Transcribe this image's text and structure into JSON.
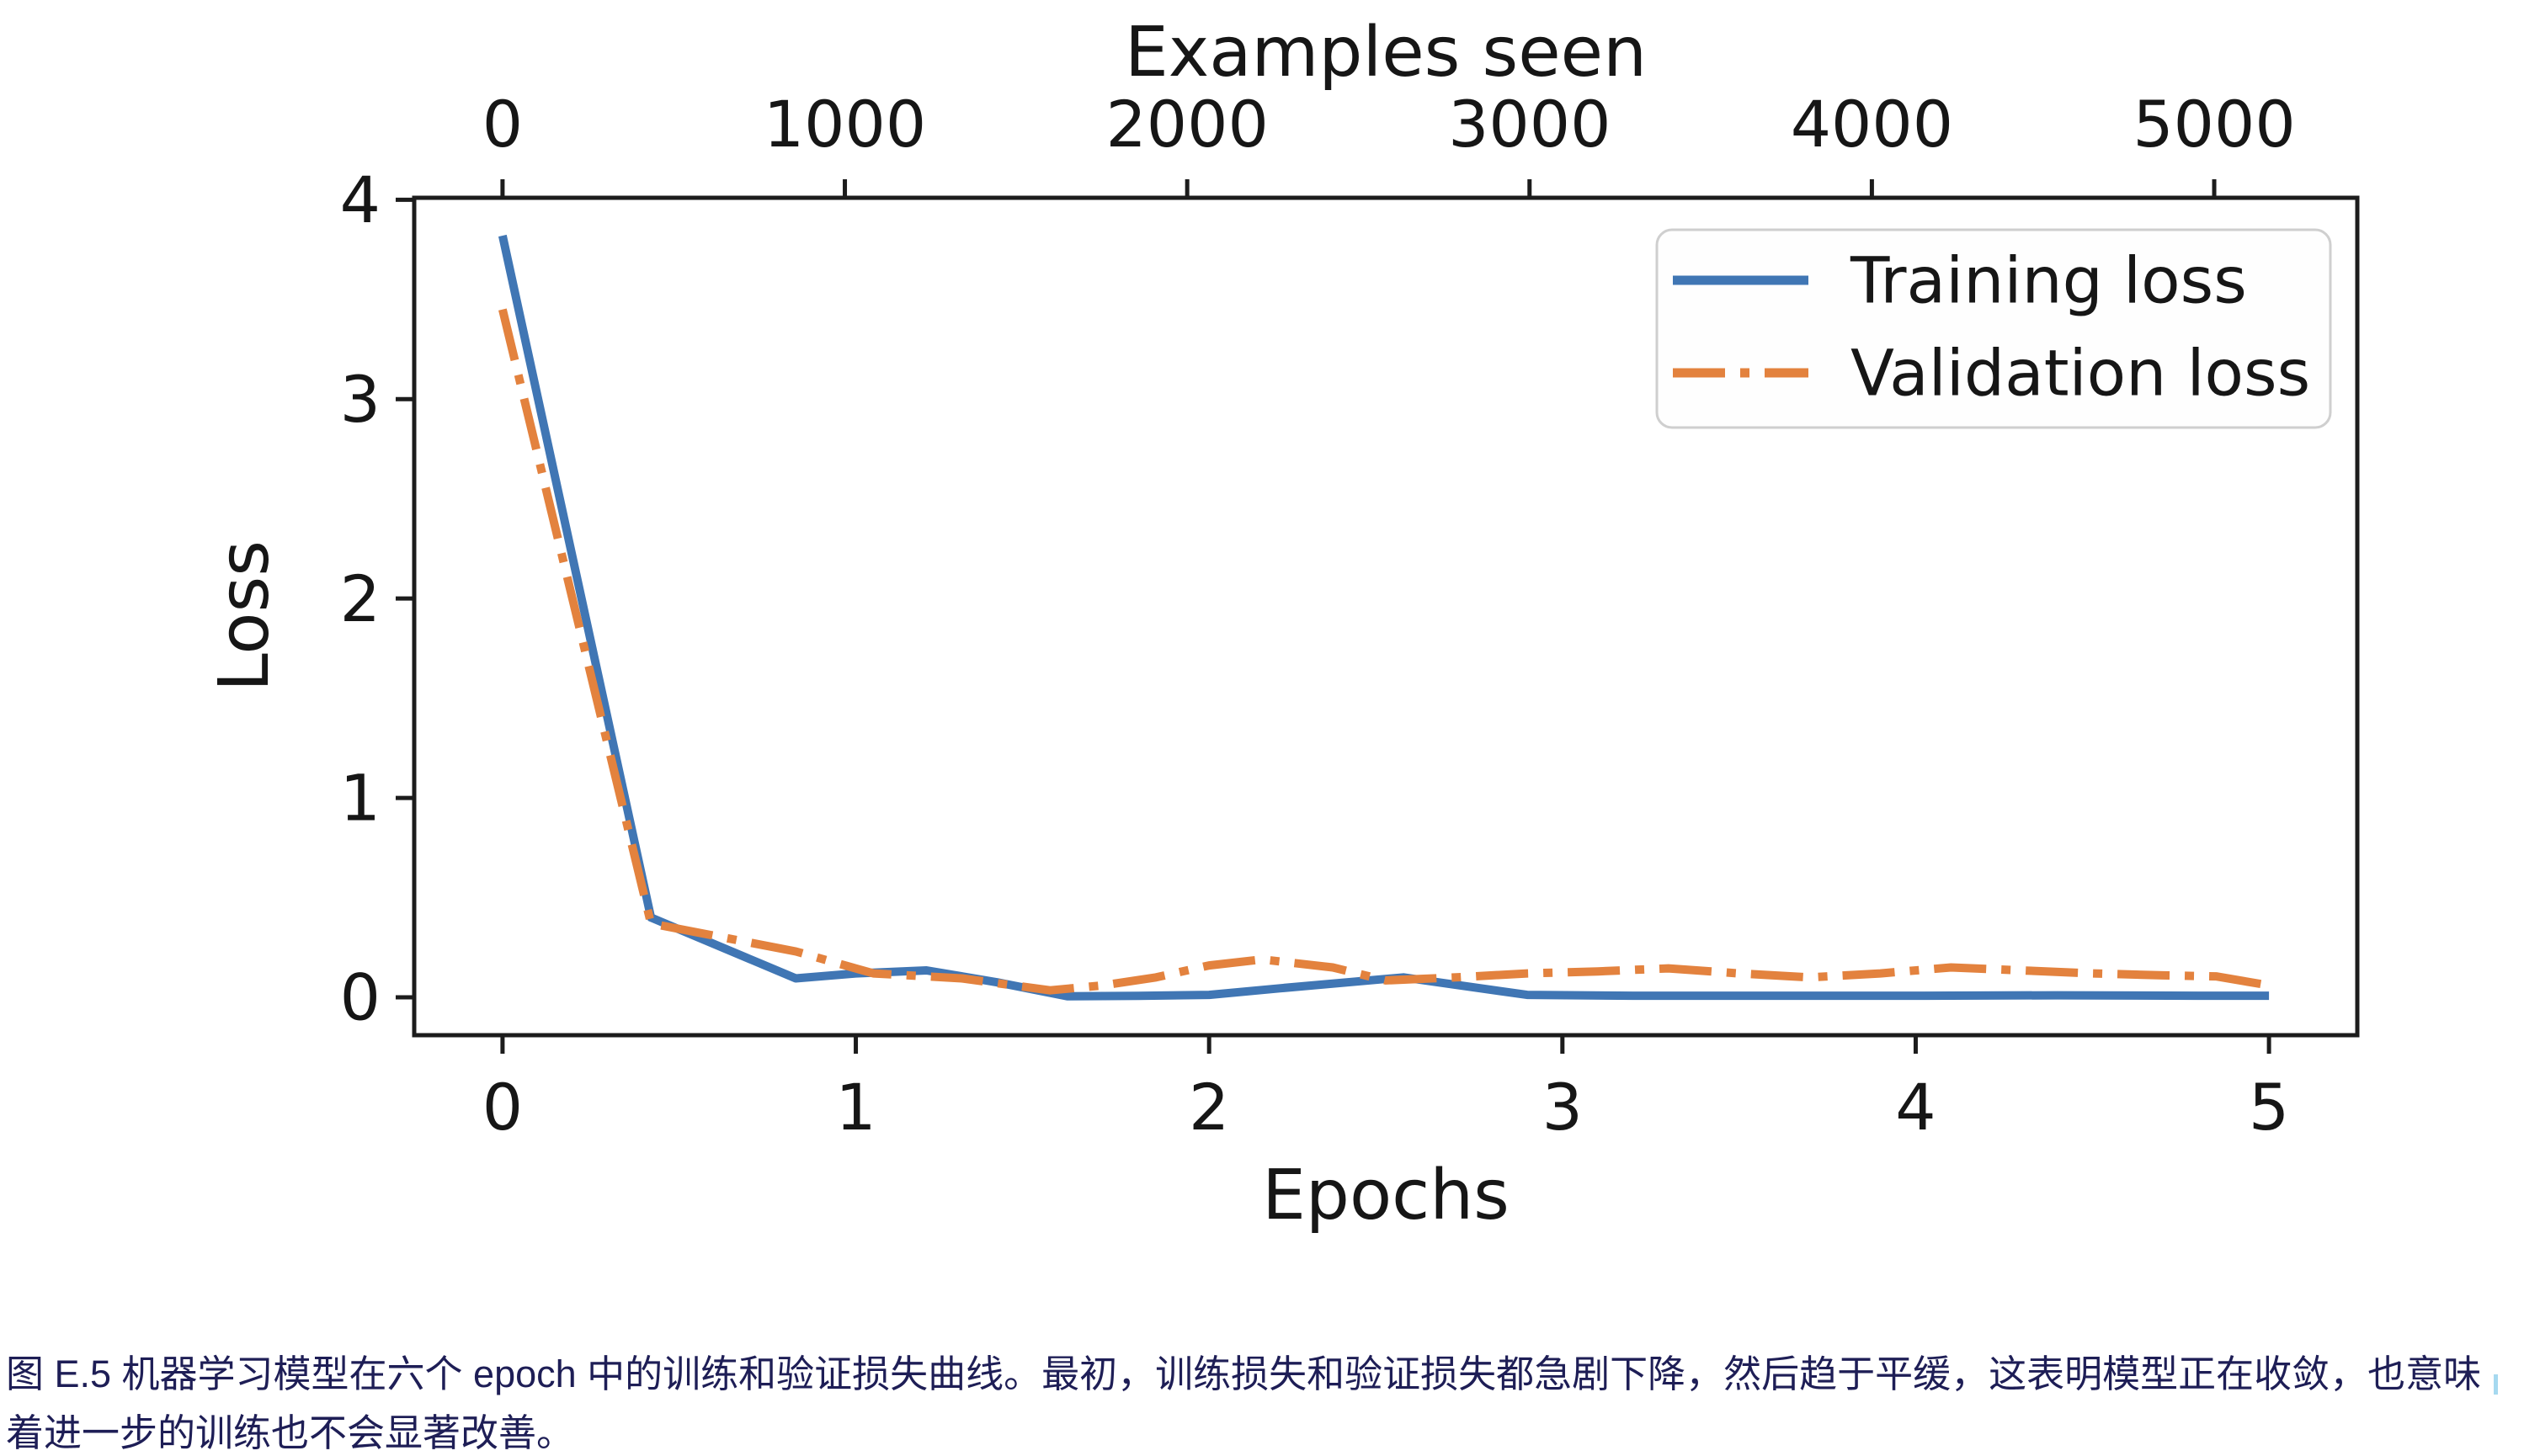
{
  "figure": {
    "caption_line1": "图 E.5 机器学习模型在六个 epoch 中的训练和验证损失曲线。最初，训练损失和验证损失都急剧下降，然后趋于平缓，这表明模型正在收敛，也意味",
    "caption_line2": "着进一步的训练也不会显著改善。",
    "caption_color": "#1e1e56",
    "caret_color": "#a6d9f0"
  },
  "chart_data": {
    "type": "line",
    "title": "",
    "top_xlabel": "Examples seen",
    "xlabel": "Epochs",
    "ylabel": "Loss",
    "xlim": [
      -0.25,
      5.25
    ],
    "ylim": [
      -0.19,
      4.01
    ],
    "x_ticks": [
      0,
      1,
      2,
      3,
      4,
      5
    ],
    "y_ticks": [
      0,
      1,
      2,
      3,
      4
    ],
    "top_ticks_examples": [
      0,
      1000,
      2000,
      3000,
      4000,
      5000
    ],
    "examples_per_epoch": 1032,
    "grid": false,
    "legend_position": "upper right",
    "axis_color": "#1c1c1c",
    "series": [
      {
        "name": "Training loss",
        "color": "#4076b4",
        "style": "solid",
        "points": [
          [
            0,
            3.82
          ],
          [
            0.42,
            0.4
          ],
          [
            0.83,
            0.095
          ],
          [
            1.0,
            0.12
          ],
          [
            1.2,
            0.135
          ],
          [
            1.4,
            0.075
          ],
          [
            1.6,
            0.005
          ],
          [
            1.8,
            0.007
          ],
          [
            2.0,
            0.012
          ],
          [
            2.2,
            0.045
          ],
          [
            2.55,
            0.1
          ],
          [
            2.9,
            0.012
          ],
          [
            3.2,
            0.008
          ],
          [
            3.6,
            0.008
          ],
          [
            4.0,
            0.008
          ],
          [
            4.4,
            0.01
          ],
          [
            4.8,
            0.008
          ],
          [
            5.0,
            0.008
          ]
        ]
      },
      {
        "name": "Validation loss",
        "color": "#e3823e",
        "style": "dashdot",
        "points": [
          [
            0,
            3.45
          ],
          [
            0.42,
            0.37
          ],
          [
            0.83,
            0.23
          ],
          [
            1.05,
            0.12
          ],
          [
            1.3,
            0.095
          ],
          [
            1.55,
            0.035
          ],
          [
            1.7,
            0.06
          ],
          [
            1.85,
            0.1
          ],
          [
            2.0,
            0.16
          ],
          [
            2.15,
            0.19
          ],
          [
            2.35,
            0.15
          ],
          [
            2.5,
            0.085
          ],
          [
            2.7,
            0.1
          ],
          [
            2.9,
            0.12
          ],
          [
            3.1,
            0.13
          ],
          [
            3.3,
            0.145
          ],
          [
            3.5,
            0.12
          ],
          [
            3.7,
            0.1
          ],
          [
            3.9,
            0.12
          ],
          [
            4.1,
            0.15
          ],
          [
            4.3,
            0.135
          ],
          [
            4.5,
            0.12
          ],
          [
            4.7,
            0.11
          ],
          [
            4.85,
            0.105
          ],
          [
            5.0,
            0.06
          ]
        ]
      }
    ]
  }
}
